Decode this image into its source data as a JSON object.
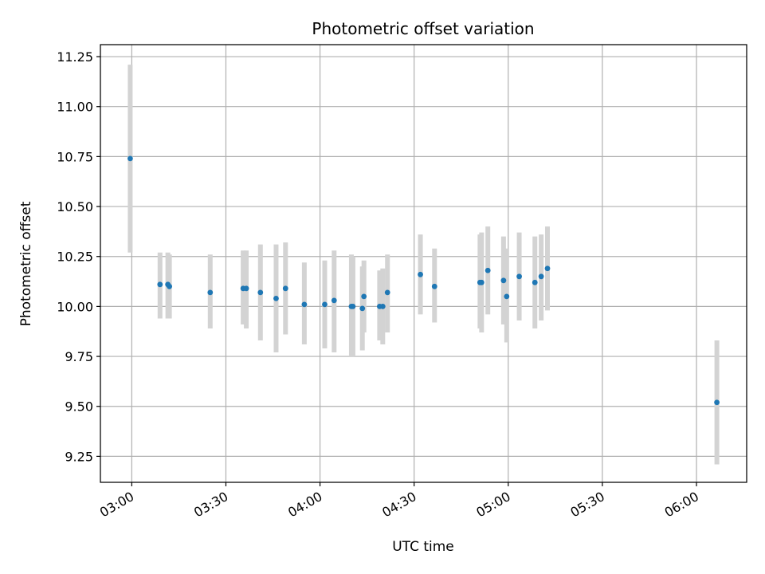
{
  "chart_data": {
    "type": "scatter",
    "title": "Photometric offset variation",
    "xlabel": "UTC time",
    "ylabel": "Photometric offset",
    "x_unit": "UTC HH:MM",
    "xlim": [
      "02:50",
      "06:16"
    ],
    "ylim": [
      9.12,
      11.31
    ],
    "xticks": [
      "03:00",
      "03:30",
      "04:00",
      "04:30",
      "05:00",
      "05:30",
      "06:00"
    ],
    "yticks": [
      "9.25",
      "9.50",
      "9.75",
      "10.00",
      "10.25",
      "10.50",
      "10.75",
      "11.00",
      "11.25"
    ],
    "grid": true,
    "legend": "none",
    "colors": {
      "point": "#1f77b4",
      "errorbar": "#d3d3d3",
      "grid": "#b0b0b0"
    },
    "series": [
      {
        "points": [
          {
            "x": "02:59:30",
            "y": 10.74,
            "ylow": 10.27,
            "yhigh": 11.21
          },
          {
            "x": "03:09:00",
            "y": 10.11,
            "ylow": 9.94,
            "yhigh": 10.27
          },
          {
            "x": "03:11:30",
            "y": 10.11,
            "ylow": 9.94,
            "yhigh": 10.27
          },
          {
            "x": "03:12:00",
            "y": 10.1,
            "ylow": 9.94,
            "yhigh": 10.26
          },
          {
            "x": "03:25:00",
            "y": 10.07,
            "ylow": 9.89,
            "yhigh": 10.26
          },
          {
            "x": "03:35:30",
            "y": 10.09,
            "ylow": 9.91,
            "yhigh": 10.28
          },
          {
            "x": "03:36:30",
            "y": 10.09,
            "ylow": 9.89,
            "yhigh": 10.28
          },
          {
            "x": "03:41:00",
            "y": 10.07,
            "ylow": 9.83,
            "yhigh": 10.31
          },
          {
            "x": "03:46:00",
            "y": 10.04,
            "ylow": 9.77,
            "yhigh": 10.31
          },
          {
            "x": "03:49:00",
            "y": 10.09,
            "ylow": 9.86,
            "yhigh": 10.32
          },
          {
            "x": "03:55:00",
            "y": 10.01,
            "ylow": 9.81,
            "yhigh": 10.22
          },
          {
            "x": "04:01:30",
            "y": 10.01,
            "ylow": 9.79,
            "yhigh": 10.23
          },
          {
            "x": "04:04:30",
            "y": 10.03,
            "ylow": 9.77,
            "yhigh": 10.28
          },
          {
            "x": "04:10:00",
            "y": 10.0,
            "ylow": 9.75,
            "yhigh": 10.26
          },
          {
            "x": "04:10:30",
            "y": 10.0,
            "ylow": 9.75,
            "yhigh": 10.25
          },
          {
            "x": "04:13:30",
            "y": 9.99,
            "ylow": 9.78,
            "yhigh": 10.2
          },
          {
            "x": "04:14:00",
            "y": 10.05,
            "ylow": 9.87,
            "yhigh": 10.23
          },
          {
            "x": "04:19:00",
            "y": 10.0,
            "ylow": 9.83,
            "yhigh": 10.18
          },
          {
            "x": "04:20:00",
            "y": 10.0,
            "ylow": 9.81,
            "yhigh": 10.19
          },
          {
            "x": "04:21:30",
            "y": 10.07,
            "ylow": 9.87,
            "yhigh": 10.26
          },
          {
            "x": "04:32:00",
            "y": 10.16,
            "ylow": 9.96,
            "yhigh": 10.36
          },
          {
            "x": "04:36:30",
            "y": 10.1,
            "ylow": 9.92,
            "yhigh": 10.29
          },
          {
            "x": "04:51:00",
            "y": 10.12,
            "ylow": 9.89,
            "yhigh": 10.36
          },
          {
            "x": "04:51:30",
            "y": 10.12,
            "ylow": 9.87,
            "yhigh": 10.37
          },
          {
            "x": "04:53:30",
            "y": 10.18,
            "ylow": 9.96,
            "yhigh": 10.4
          },
          {
            "x": "04:58:30",
            "y": 10.13,
            "ylow": 9.91,
            "yhigh": 10.35
          },
          {
            "x": "04:59:30",
            "y": 10.05,
            "ylow": 9.82,
            "yhigh": 10.29
          },
          {
            "x": "05:03:30",
            "y": 10.15,
            "ylow": 9.93,
            "yhigh": 10.37
          },
          {
            "x": "05:08:30",
            "y": 10.12,
            "ylow": 9.89,
            "yhigh": 10.35
          },
          {
            "x": "05:10:30",
            "y": 10.15,
            "ylow": 9.93,
            "yhigh": 10.36
          },
          {
            "x": "05:12:30",
            "y": 10.19,
            "ylow": 9.98,
            "yhigh": 10.4
          },
          {
            "x": "06:06:30",
            "y": 9.52,
            "ylow": 9.21,
            "yhigh": 9.83
          }
        ]
      }
    ]
  }
}
